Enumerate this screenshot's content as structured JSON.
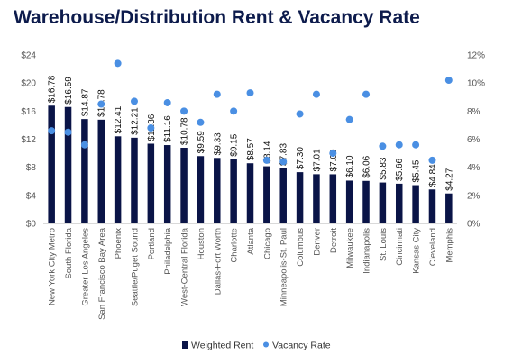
{
  "chart_data": {
    "type": "bar",
    "title": "Warehouse/Distribution Rent & Vacancy Rate",
    "categories": [
      "New York City Metro",
      "South Florida",
      "Greater Los Angeles",
      "San Francisco Bay Area",
      "Phoenix",
      "Seattle/Puget Sound",
      "Portland",
      "Philadelphia",
      "West-Central Florida",
      "Houston",
      "Dallas-Fort Worth",
      "Charlotte",
      "Atlanta",
      "Chicago",
      "Minneapolis-St. Paul",
      "Columbus",
      "Denver",
      "Detroit",
      "Milwaukee",
      "Indianapolis",
      "St. Louis",
      "Cincinnati",
      "Kansas City",
      "Cleveland",
      "Memphis"
    ],
    "series": [
      {
        "name": "Weighted Rent",
        "type": "bar",
        "axis": "left",
        "values": [
          16.78,
          16.59,
          14.87,
          14.78,
          12.41,
          12.21,
          11.36,
          11.16,
          10.78,
          9.59,
          9.33,
          9.15,
          8.57,
          8.14,
          7.83,
          7.3,
          7.01,
          7.0,
          6.1,
          6.06,
          5.83,
          5.66,
          5.45,
          4.84,
          4.27
        ],
        "labels": [
          "$16.78",
          "$16.59",
          "$14.87",
          "$14.78",
          "$12.41",
          "$12.21",
          "$11.36",
          "$11.16",
          "$10.78",
          "$9.59",
          "$9.33",
          "$9.15",
          "$8.57",
          "$8.14",
          "$7.83",
          "$7.30",
          "$7.01",
          "$7.00",
          "$6.10",
          "$6.06",
          "$5.83",
          "$5.66",
          "$5.45",
          "$4.84",
          "$4.27"
        ]
      },
      {
        "name": "Vacancy Rate",
        "type": "scatter",
        "axis": "right",
        "values": [
          6.6,
          6.5,
          5.6,
          8.5,
          11.4,
          8.7,
          6.8,
          8.6,
          8.0,
          7.2,
          9.2,
          8.0,
          9.3,
          4.5,
          4.4,
          7.8,
          9.2,
          5.0,
          7.4,
          9.2,
          5.5,
          5.6,
          5.6,
          4.5,
          10.2
        ]
      }
    ],
    "y_left": {
      "min": 0,
      "max": 24,
      "ticks": [
        "$0",
        "$4",
        "$8",
        "$12",
        "$16",
        "$20",
        "$24"
      ]
    },
    "y_right": {
      "min": 0,
      "max": 12,
      "ticks": [
        "0%",
        "2%",
        "4%",
        "6%",
        "8%",
        "10%",
        "12%"
      ]
    },
    "grid": false,
    "legend": {
      "position": "bottom",
      "items": [
        "Weighted Rent",
        "Vacancy Rate"
      ]
    },
    "colors": {
      "bar": "#0a1447",
      "dot": "#4a8fe3",
      "title": "#0d1b4c",
      "axis": "#d9d9d9"
    }
  }
}
